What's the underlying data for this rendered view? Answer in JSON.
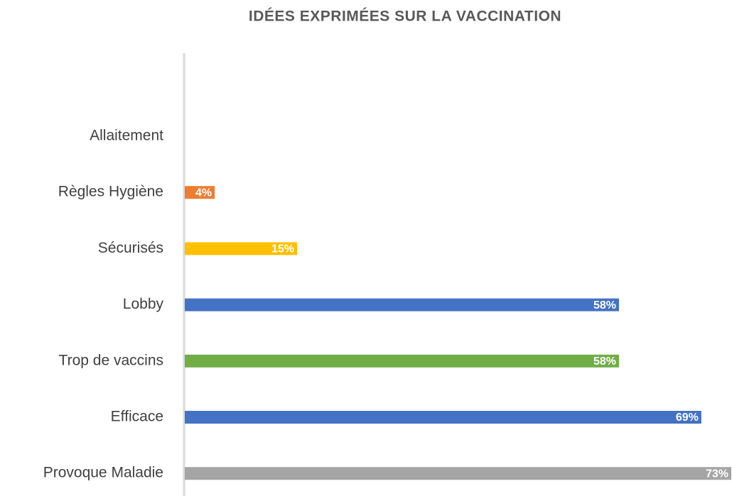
{
  "chart_data": {
    "type": "barh",
    "title": "IDÉES EXPRIMÉES SUR LA VACCINATION",
    "categories": [
      "Allaitement",
      "Règles Hygiène",
      "Sécurisés",
      "Lobby",
      "Trop de vaccins",
      "Efficace",
      "Provoque Maladie"
    ],
    "values": [
      0,
      4,
      15,
      58,
      58,
      69,
      73
    ],
    "value_labels": [
      null,
      "4%",
      "15%",
      "58%",
      "58%",
      "69%",
      "73%"
    ],
    "colors": [
      null,
      "#ED7D31",
      "#FFC000",
      "#4472C4",
      "#70AD47",
      "#4472C4",
      "#A5A5A5"
    ],
    "xlim": [
      0,
      73
    ]
  }
}
